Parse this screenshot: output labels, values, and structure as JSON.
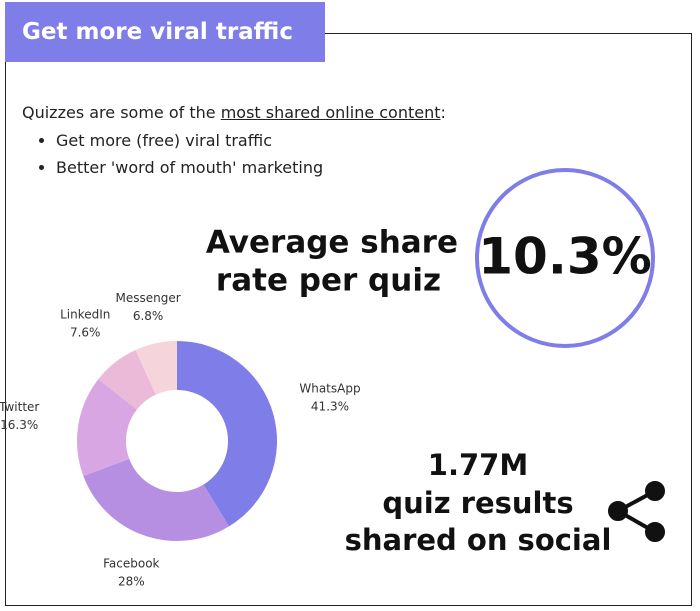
{
  "header": {
    "title": "Get more viral traffic"
  },
  "intro": {
    "before": "Quizzes are some of the ",
    "link": "most shared online content",
    "after": ":"
  },
  "bullets": [
    "Get more (free) viral traffic",
    "Better 'word of mouth' marketing"
  ],
  "share_rate": {
    "lines": [
      "Average share",
      "rate per quiz"
    ],
    "value": "10.3%"
  },
  "results": {
    "lines": [
      "1.77M",
      "quiz results",
      "shared on social"
    ]
  },
  "chart_data": {
    "type": "pie",
    "donut": true,
    "categories": [
      "WhatsApp",
      "Facebook",
      "Twitter",
      "LinkedIn",
      "Messenger"
    ],
    "values": [
      41.3,
      28,
      16.3,
      7.6,
      6.8
    ],
    "value_labels": [
      "41.3%",
      "28%",
      "16.3%",
      "7.6%",
      "6.8%"
    ],
    "colors": [
      "#7f7de8",
      "#b78fe2",
      "#d8a6e2",
      "#ebbad8",
      "#f6d4dc"
    ]
  }
}
